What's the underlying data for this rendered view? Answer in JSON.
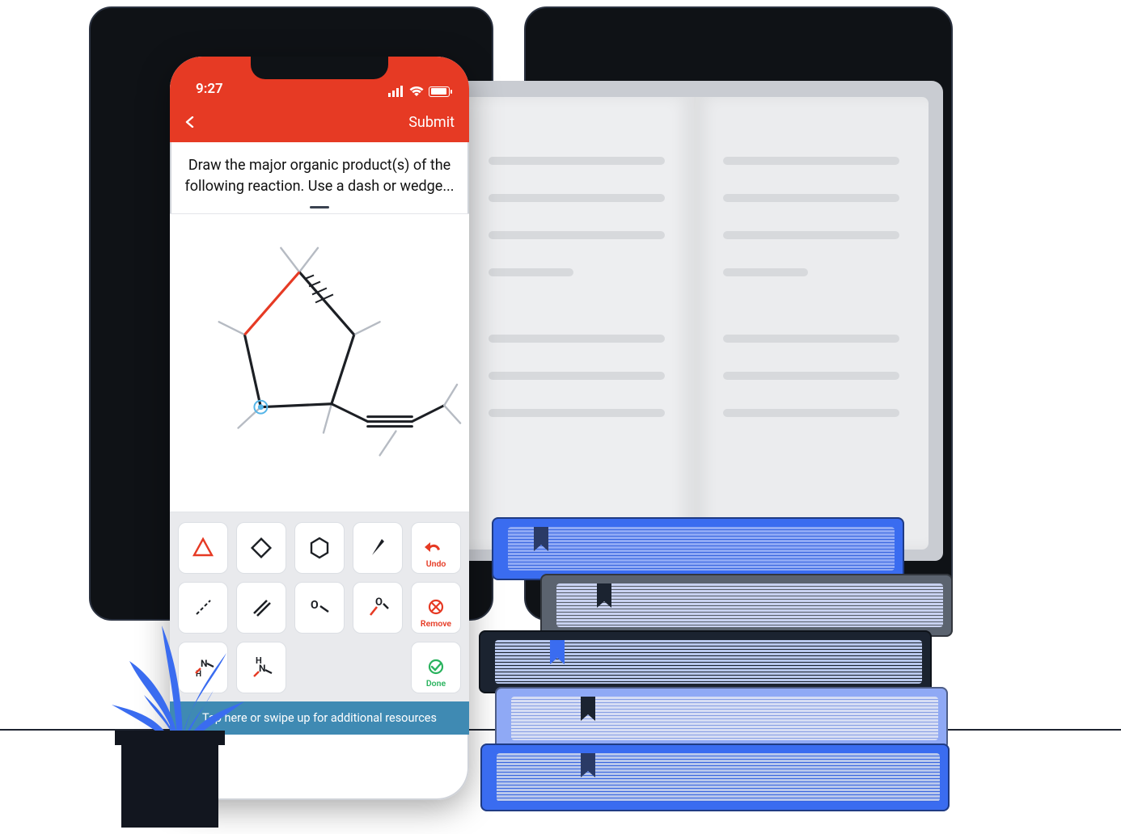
{
  "colors": {
    "accent_red": "#e63a24",
    "tip_bar": "#3f8ab3",
    "done_green": "#2ab35e",
    "dark": "#12161f",
    "bg_card_border": "#2b3240",
    "page_bg": "#edeef0",
    "page_line": "#d7d9dc",
    "tool_panel_bg": "#e9eaed",
    "book_blue": "#3a6cf0",
    "book_lightblue": "#8fa9f5",
    "book_paleblue": "#b8c7ec",
    "book_gray": "#5b636f",
    "book_dark": "#1b2330",
    "book_page": "#c8d1f0"
  },
  "phone": {
    "status_time": "9:27",
    "nav_submit": "Submit",
    "question": "Draw the major organic product(s) of the following reaction. Use a dash or wedge...",
    "tip_text": "Tap here or swipe up for additional resources",
    "tools": {
      "undo": "Undo",
      "remove": "Remove",
      "done": "Done"
    }
  },
  "molecule": {
    "type": "organic-structure",
    "bond_color": "#1c1f24",
    "bond_color_light": "#b6bbc3",
    "bond_highlight": "#e63a24",
    "atom_highlight_fill": "#55b5e8",
    "line_width_main": 3,
    "line_width_sub": 2
  },
  "books": [
    {
      "cover": "#3a6cf0",
      "pages": "#8fa9f5",
      "bookmark": "#2a3a66"
    },
    {
      "cover": "#5b636f",
      "pages": "#c8d1f0",
      "bookmark": "#1b2330"
    },
    {
      "cover": "#1b2330",
      "pages": "#b8c7ec",
      "bookmark": "#3a6cf0"
    },
    {
      "cover": "#8fa9f5",
      "pages": "#d6ddf4",
      "bookmark": "#1b2330"
    },
    {
      "cover": "#3a6cf0",
      "pages": "#b8c7ec",
      "bookmark": "#2a3a66"
    }
  ]
}
